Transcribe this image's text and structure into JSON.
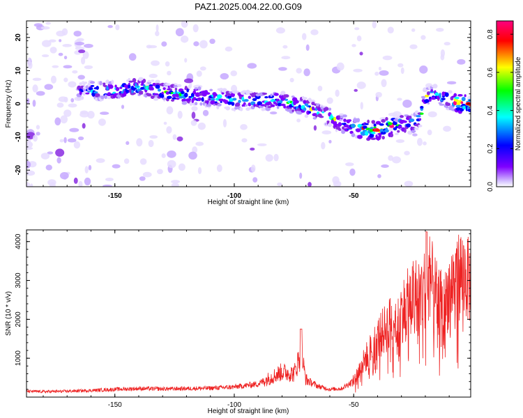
{
  "title": "PAZ1.2025.004.22.00.G09",
  "chart_data": [
    {
      "type": "heatmap",
      "xlabel": "Height of straight line (km)",
      "ylabel": "Frequency (Hz)",
      "xlim": [
        -187,
        -1
      ],
      "ylim": [
        -25,
        25
      ],
      "xticks": [
        -150,
        -100,
        -50
      ],
      "yticks": [
        -20,
        -10,
        0,
        10,
        20
      ],
      "colorbar": {
        "label": "Normalized spectral amplitude",
        "range": [
          0,
          0.87
        ],
        "ticks": [
          "0.0",
          "0.2",
          "0.4",
          "0.6",
          "0.8"
        ],
        "colors": [
          "#ffffff",
          "#7f00ff",
          "#0000ff",
          "#00ffff",
          "#00ff00",
          "#ffff00",
          "#ff0000",
          "#ff0080"
        ]
      },
      "ridge_center": {
        "x": [
          -187,
          -160,
          -150,
          -140,
          -125,
          -110,
          -100,
          -90,
          -80,
          -70,
          -60,
          -55,
          -50,
          -45,
          -40,
          -35,
          -30,
          -25,
          -22,
          -20,
          -15,
          -10,
          -5,
          -1
        ],
        "y": [
          4,
          4,
          4,
          5,
          3,
          2,
          1,
          1,
          1,
          -1,
          -4,
          -6,
          -7,
          -8,
          -8,
          -7,
          -6,
          -6,
          -4,
          2,
          3,
          1,
          0,
          0
        ]
      },
      "peak": {
        "x": [
          -1
        ],
        "y": [
          0
        ],
        "value": [
          0.85
        ]
      },
      "grid": false
    },
    {
      "type": "line",
      "xlabel": "Height of straight line (km)",
      "ylabel": "SNR (10 * v/v)",
      "xlim": [
        -187,
        -1
      ],
      "ylim": [
        0,
        4300
      ],
      "xticks": [
        -150,
        -100,
        -50
      ],
      "yticks": [
        1000,
        2000,
        3000,
        4000
      ],
      "color": "#ee2222",
      "series": [
        {
          "x": [
            -187,
            -180,
            -170,
            -160,
            -150,
            -140,
            -130,
            -120,
            -110,
            -100,
            -90,
            -80,
            -75,
            -72,
            -70,
            -65,
            -60,
            -55,
            -50,
            -45,
            -42,
            -40,
            -35,
            -30,
            -25,
            -20,
            -18,
            -15,
            -12,
            -10,
            -8,
            -5,
            -3,
            -1
          ],
          "y": [
            150,
            140,
            150,
            170,
            200,
            220,
            210,
            220,
            230,
            260,
            340,
            650,
            600,
            1150,
            450,
            280,
            200,
            220,
            420,
            1000,
            1300,
            1500,
            1900,
            2200,
            2600,
            2800,
            3100,
            2500,
            2300,
            2800,
            3000,
            3200,
            3100,
            2900
          ]
        }
      ],
      "grid": false
    }
  ]
}
